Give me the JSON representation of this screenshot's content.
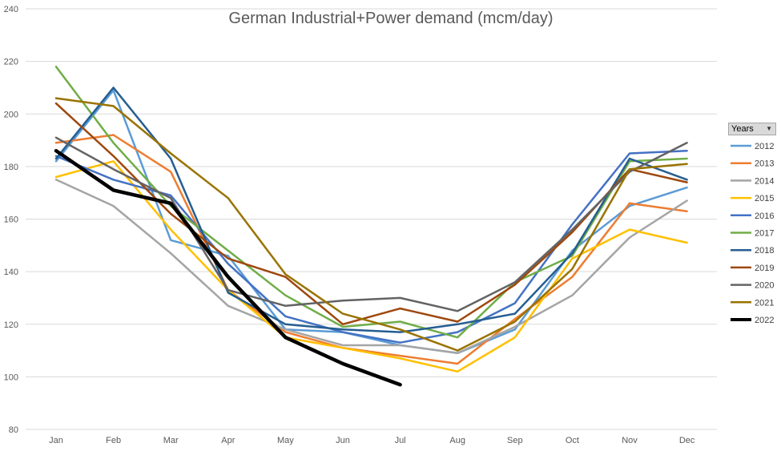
{
  "chart_data": {
    "type": "line",
    "title": "German Industrial+Power demand (mcm/day)",
    "xlabel": "",
    "ylabel": "",
    "categories": [
      "Jan",
      "Feb",
      "Mar",
      "Apr",
      "May",
      "Jun",
      "Jul",
      "Aug",
      "Sep",
      "Oct",
      "Nov",
      "Dec"
    ],
    "ylim": [
      80,
      240
    ],
    "yticks": [
      80,
      100,
      120,
      140,
      160,
      180,
      200,
      220,
      240
    ],
    "grid": true,
    "legend_title": "Years",
    "legend_position": "right",
    "series": [
      {
        "name": "2012",
        "color": "#5b9bd5",
        "width": 2.5,
        "values": [
          182,
          209,
          152,
          146,
          118,
          117,
          112,
          109,
          118,
          148,
          165,
          172
        ]
      },
      {
        "name": "2013",
        "color": "#ed7d31",
        "width": 2.5,
        "values": [
          189,
          192,
          178,
          133,
          117,
          111,
          108,
          105,
          122,
          138,
          166,
          163
        ]
      },
      {
        "name": "2014",
        "color": "#a5a5a5",
        "width": 2.5,
        "values": [
          175,
          165,
          147,
          127,
          118,
          112,
          112,
          109,
          119,
          131,
          153,
          167
        ]
      },
      {
        "name": "2015",
        "color": "#ffc000",
        "width": 2.5,
        "values": [
          176,
          182,
          156,
          133,
          115,
          111,
          107,
          102,
          115,
          145,
          156,
          151
        ]
      },
      {
        "name": "2016",
        "color": "#4472c4",
        "width": 2.5,
        "values": [
          184,
          175,
          169,
          143,
          123,
          117,
          113,
          117,
          128,
          158,
          185,
          186
        ]
      },
      {
        "name": "2017",
        "color": "#70ad47",
        "width": 2.5,
        "values": [
          218,
          189,
          165,
          148,
          131,
          119,
          121,
          115,
          136,
          146,
          182,
          183
        ]
      },
      {
        "name": "2018",
        "color": "#255e91",
        "width": 2.5,
        "values": [
          183,
          210,
          183,
          132,
          120,
          118,
          117,
          120,
          124,
          147,
          183,
          175
        ]
      },
      {
        "name": "2019",
        "color": "#9e480e",
        "width": 2.5,
        "values": [
          204,
          184,
          162,
          145,
          138,
          120,
          126,
          121,
          135,
          155,
          179,
          174
        ]
      },
      {
        "name": "2020",
        "color": "#636363",
        "width": 2.5,
        "values": [
          191,
          179,
          168,
          133,
          127,
          129,
          130,
          125,
          136,
          156,
          178,
          189
        ]
      },
      {
        "name": "2021",
        "color": "#997300",
        "width": 2.5,
        "values": [
          206,
          203,
          185,
          168,
          139,
          124,
          118,
          110,
          121,
          141,
          179,
          181
        ]
      },
      {
        "name": "2022",
        "color": "#000000",
        "width": 4.5,
        "values": [
          186,
          171,
          166,
          138,
          115,
          105,
          97,
          null,
          null,
          null,
          null,
          null
        ]
      }
    ]
  }
}
